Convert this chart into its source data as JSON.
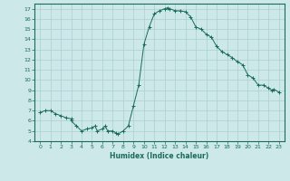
{
  "title": "",
  "xlabel": "Humidex (Indice chaleur)",
  "ylabel": "",
  "background_color": "#cce8e8",
  "grid_color": "#aacfcf",
  "line_color": "#1a6b5a",
  "marker_color": "#1a6b5a",
  "xlim": [
    -0.5,
    23.5
  ],
  "ylim": [
    4,
    17.5
  ],
  "yticks": [
    4,
    5,
    6,
    7,
    8,
    9,
    10,
    11,
    12,
    13,
    14,
    15,
    16,
    17
  ],
  "xticks": [
    0,
    1,
    2,
    3,
    4,
    5,
    6,
    7,
    8,
    9,
    10,
    11,
    12,
    13,
    14,
    15,
    16,
    17,
    18,
    19,
    20,
    21,
    22,
    23
  ],
  "x": [
    0,
    0.5,
    1,
    1.5,
    2,
    2.5,
    3,
    3.0,
    3.5,
    4,
    4.5,
    5,
    5.3,
    5.5,
    6,
    6.3,
    6.5,
    7,
    7.3,
    7.5,
    8,
    8.5,
    9,
    9.5,
    10,
    10.5,
    11,
    11.5,
    12,
    12.3,
    12.5,
    13,
    13.5,
    14,
    14.5,
    15,
    15.5,
    16,
    16.5,
    17,
    17.5,
    18,
    18.5,
    19,
    19.5,
    20,
    20.5,
    21,
    21.5,
    22,
    22.3,
    22.5,
    23
  ],
  "y": [
    6.8,
    7.0,
    7.0,
    6.7,
    6.5,
    6.3,
    6.2,
    6.0,
    5.5,
    5.0,
    5.2,
    5.3,
    5.5,
    5.0,
    5.2,
    5.5,
    5.0,
    5.0,
    4.8,
    4.7,
    5.0,
    5.5,
    7.5,
    9.5,
    13.5,
    15.2,
    16.5,
    16.8,
    17.0,
    17.1,
    17.0,
    16.8,
    16.8,
    16.7,
    16.2,
    15.2,
    15.0,
    14.5,
    14.2,
    13.3,
    12.8,
    12.5,
    12.2,
    11.8,
    11.5,
    10.5,
    10.2,
    9.5,
    9.5,
    9.2,
    9.0,
    9.1,
    8.8
  ]
}
